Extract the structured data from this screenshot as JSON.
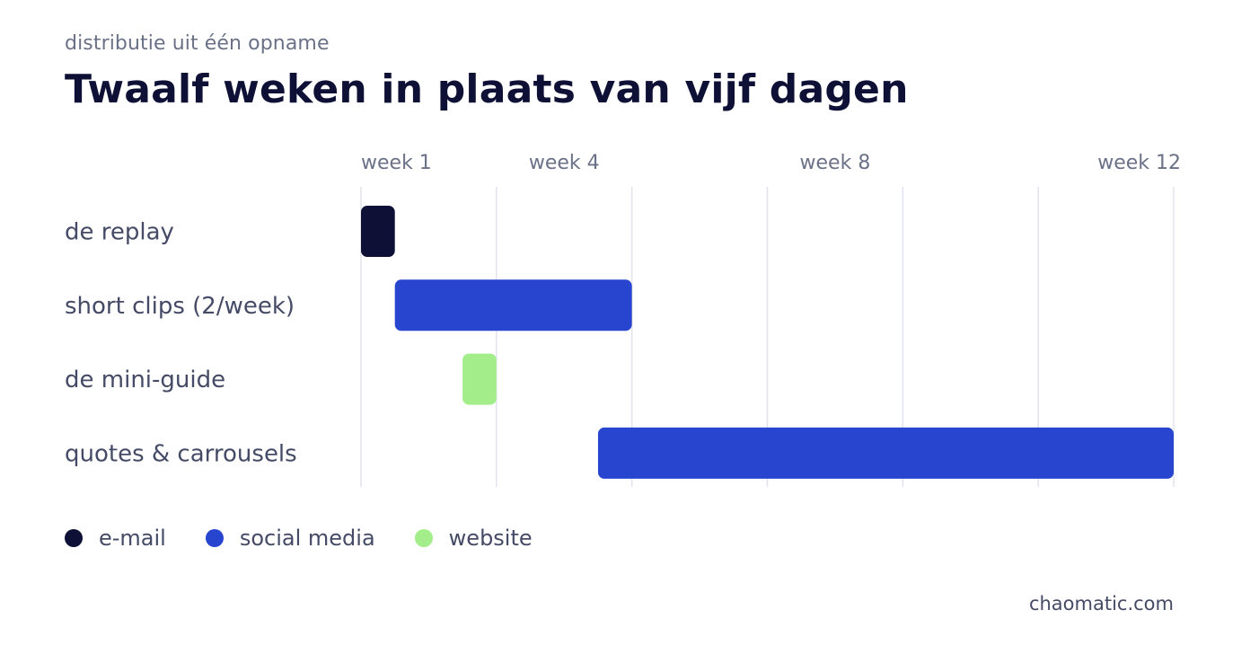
{
  "header": {
    "subtitle": "distributie uit één opname",
    "title": "Twaalf weken in plaats van vijf dagen"
  },
  "chart_data": {
    "type": "bar",
    "orientation": "horizontal-gantt",
    "title": "Twaalf weken in plaats van vijf dagen",
    "subtitle": "distributie uit één opname",
    "x_unit": "week",
    "xlim": [
      1,
      13
    ],
    "x_ticks": [
      {
        "value": 1,
        "label": "week 1"
      },
      {
        "value": 4,
        "label": "week 4"
      },
      {
        "value": 8,
        "label": "week 8"
      },
      {
        "value": 12,
        "label": "week 12"
      }
    ],
    "gridlines": [
      1,
      3,
      5,
      7,
      9,
      11,
      13
    ],
    "categories": [
      "de replay",
      "short clips (2/week)",
      "de mini-guide",
      "quotes & carrousels"
    ],
    "tasks": [
      {
        "label": "de replay",
        "start": 1,
        "end": 1.5,
        "channel": "e-mail"
      },
      {
        "label": "short clips (2/week)",
        "start": 1.5,
        "end": 5,
        "channel": "social media"
      },
      {
        "label": "de mini-guide",
        "start": 2.5,
        "end": 3,
        "channel": "website"
      },
      {
        "label": "quotes & carrousels",
        "start": 4.5,
        "end": 13,
        "channel": "social media"
      }
    ],
    "legend_position": "bottom-left",
    "grid": true
  },
  "legend": [
    {
      "label": "e-mail",
      "color": "#0e1036"
    },
    {
      "label": "social media",
      "color": "#2845cf"
    },
    {
      "label": "website",
      "color": "#a3ee8a"
    }
  ],
  "colors": {
    "e-mail": "#0e1036",
    "social media": "#2845cf",
    "website": "#a3ee8a",
    "grid": "#e2e3ec",
    "tick_text": "#6b7187",
    "row_label": "#454b66"
  },
  "footer": {
    "source": "chaomatic.com"
  }
}
